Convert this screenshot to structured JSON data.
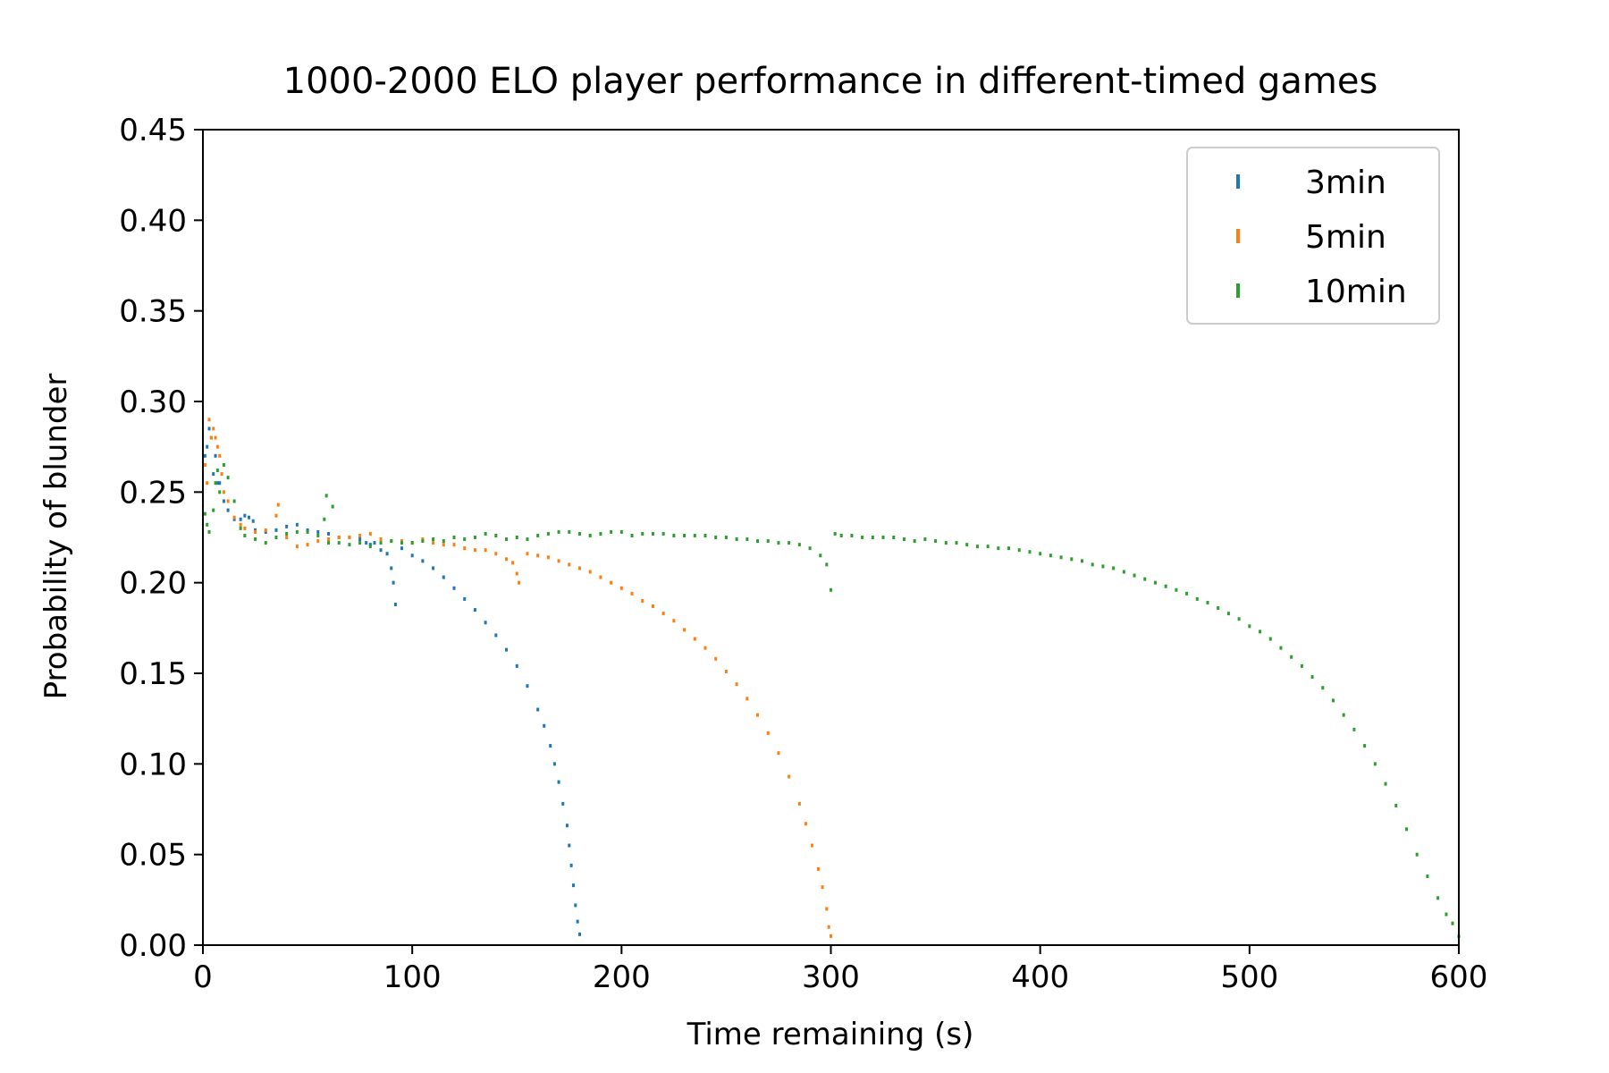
{
  "chart_data": {
    "type": "scatter",
    "title": "1000-2000 ELO player performance in different-timed games",
    "xlabel": "Time remaining (s)",
    "ylabel": "Probability of blunder",
    "xlim": [
      0,
      600
    ],
    "ylim": [
      0,
      0.45
    ],
    "xticks": [
      0,
      100,
      200,
      300,
      400,
      500,
      600
    ],
    "xtick_labels": [
      "0",
      "100",
      "200",
      "300",
      "400",
      "500",
      "600"
    ],
    "yticks": [
      0.0,
      0.05,
      0.1,
      0.15,
      0.2,
      0.25,
      0.3,
      0.35,
      0.4,
      0.45
    ],
    "ytick_labels": [
      "0.00",
      "0.05",
      "0.10",
      "0.15",
      "0.20",
      "0.25",
      "0.30",
      "0.35",
      "0.40",
      "0.45"
    ],
    "grid": false,
    "legend_position": "top-right",
    "series": [
      {
        "name": "3min",
        "color": "#1f77b4",
        "points": [
          [
            1,
            0.27
          ],
          [
            2,
            0.275
          ],
          [
            3,
            0.285
          ],
          [
            4,
            0.28
          ],
          [
            5,
            0.26
          ],
          [
            6,
            0.27
          ],
          [
            7,
            0.255
          ],
          [
            8,
            0.255
          ],
          [
            10,
            0.245
          ],
          [
            12,
            0.24
          ],
          [
            15,
            0.235
          ],
          [
            18,
            0.235
          ],
          [
            20,
            0.237
          ],
          [
            22,
            0.236
          ],
          [
            24,
            0.234
          ],
          [
            25,
            0.229
          ],
          [
            30,
            0.228
          ],
          [
            35,
            0.229
          ],
          [
            40,
            0.231
          ],
          [
            45,
            0.232
          ],
          [
            50,
            0.229
          ],
          [
            55,
            0.228
          ],
          [
            60,
            0.227
          ],
          [
            65,
            0.225
          ],
          [
            70,
            0.225
          ],
          [
            75,
            0.224
          ],
          [
            78,
            0.222
          ],
          [
            80,
            0.221
          ],
          [
            82,
            0.222
          ],
          [
            85,
            0.218
          ],
          [
            88,
            0.216
          ],
          [
            90,
            0.208
          ],
          [
            91,
            0.2
          ],
          [
            92,
            0.188
          ],
          [
            95,
            0.219
          ],
          [
            100,
            0.215
          ],
          [
            105,
            0.212
          ],
          [
            110,
            0.208
          ],
          [
            115,
            0.203
          ],
          [
            120,
            0.197
          ],
          [
            125,
            0.191
          ],
          [
            130,
            0.185
          ],
          [
            135,
            0.178
          ],
          [
            140,
            0.171
          ],
          [
            145,
            0.163
          ],
          [
            150,
            0.154
          ],
          [
            155,
            0.143
          ],
          [
            160,
            0.13
          ],
          [
            163,
            0.121
          ],
          [
            166,
            0.11
          ],
          [
            168,
            0.1
          ],
          [
            170,
            0.09
          ],
          [
            172,
            0.078
          ],
          [
            174,
            0.066
          ],
          [
            175,
            0.055
          ],
          [
            176,
            0.044
          ],
          [
            177,
            0.033
          ],
          [
            178,
            0.022
          ],
          [
            179,
            0.013
          ],
          [
            180,
            0.006
          ]
        ]
      },
      {
        "name": "5min",
        "color": "#ff7f0e",
        "points": [
          [
            1,
            0.265
          ],
          [
            2,
            0.255
          ],
          [
            3,
            0.29
          ],
          [
            4,
            0.28
          ],
          [
            5,
            0.285
          ],
          [
            6,
            0.28
          ],
          [
            7,
            0.275
          ],
          [
            8,
            0.27
          ],
          [
            9,
            0.26
          ],
          [
            10,
            0.25
          ],
          [
            12,
            0.245
          ],
          [
            15,
            0.236
          ],
          [
            18,
            0.232
          ],
          [
            20,
            0.23
          ],
          [
            25,
            0.228
          ],
          [
            30,
            0.229
          ],
          [
            35,
            0.237
          ],
          [
            36,
            0.243
          ],
          [
            40,
            0.225
          ],
          [
            45,
            0.22
          ],
          [
            50,
            0.221
          ],
          [
            55,
            0.223
          ],
          [
            60,
            0.224
          ],
          [
            65,
            0.225
          ],
          [
            70,
            0.225
          ],
          [
            75,
            0.226
          ],
          [
            80,
            0.227
          ],
          [
            85,
            0.224
          ],
          [
            90,
            0.223
          ],
          [
            95,
            0.223
          ],
          [
            100,
            0.222
          ],
          [
            105,
            0.224
          ],
          [
            110,
            0.222
          ],
          [
            115,
            0.221
          ],
          [
            120,
            0.221
          ],
          [
            125,
            0.219
          ],
          [
            130,
            0.218
          ],
          [
            135,
            0.218
          ],
          [
            140,
            0.216
          ],
          [
            145,
            0.213
          ],
          [
            148,
            0.211
          ],
          [
            150,
            0.205
          ],
          [
            151,
            0.2
          ],
          [
            155,
            0.216
          ],
          [
            160,
            0.215
          ],
          [
            165,
            0.214
          ],
          [
            170,
            0.212
          ],
          [
            175,
            0.21
          ],
          [
            180,
            0.208
          ],
          [
            185,
            0.206
          ],
          [
            190,
            0.203
          ],
          [
            195,
            0.2
          ],
          [
            200,
            0.197
          ],
          [
            205,
            0.194
          ],
          [
            210,
            0.19
          ],
          [
            215,
            0.187
          ],
          [
            220,
            0.183
          ],
          [
            225,
            0.179
          ],
          [
            230,
            0.174
          ],
          [
            235,
            0.169
          ],
          [
            240,
            0.164
          ],
          [
            245,
            0.158
          ],
          [
            250,
            0.151
          ],
          [
            255,
            0.144
          ],
          [
            260,
            0.136
          ],
          [
            265,
            0.127
          ],
          [
            270,
            0.117
          ],
          [
            275,
            0.106
          ],
          [
            280,
            0.093
          ],
          [
            285,
            0.078
          ],
          [
            288,
            0.067
          ],
          [
            291,
            0.055
          ],
          [
            294,
            0.042
          ],
          [
            296,
            0.032
          ],
          [
            298,
            0.02
          ],
          [
            299,
            0.01
          ],
          [
            300,
            0.005
          ]
        ]
      },
      {
        "name": "10min",
        "color": "#2ca02c",
        "points": [
          [
            1,
            0.238
          ],
          [
            2,
            0.232
          ],
          [
            3,
            0.228
          ],
          [
            5,
            0.24
          ],
          [
            6,
            0.255
          ],
          [
            7,
            0.262
          ],
          [
            8,
            0.25
          ],
          [
            10,
            0.265
          ],
          [
            12,
            0.258
          ],
          [
            15,
            0.245
          ],
          [
            18,
            0.23
          ],
          [
            20,
            0.226
          ],
          [
            25,
            0.224
          ],
          [
            30,
            0.222
          ],
          [
            35,
            0.225
          ],
          [
            40,
            0.227
          ],
          [
            45,
            0.228
          ],
          [
            50,
            0.228
          ],
          [
            55,
            0.226
          ],
          [
            58,
            0.235
          ],
          [
            59,
            0.248
          ],
          [
            60,
            0.222
          ],
          [
            62,
            0.242
          ],
          [
            65,
            0.222
          ],
          [
            70,
            0.221
          ],
          [
            75,
            0.222
          ],
          [
            80,
            0.22
          ],
          [
            85,
            0.222
          ],
          [
            90,
            0.223
          ],
          [
            95,
            0.222
          ],
          [
            100,
            0.222
          ],
          [
            105,
            0.223
          ],
          [
            110,
            0.224
          ],
          [
            115,
            0.223
          ],
          [
            120,
            0.225
          ],
          [
            125,
            0.224
          ],
          [
            130,
            0.225
          ],
          [
            135,
            0.227
          ],
          [
            140,
            0.226
          ],
          [
            145,
            0.224
          ],
          [
            150,
            0.225
          ],
          [
            155,
            0.224
          ],
          [
            160,
            0.226
          ],
          [
            165,
            0.227
          ],
          [
            170,
            0.228
          ],
          [
            175,
            0.228
          ],
          [
            180,
            0.227
          ],
          [
            185,
            0.226
          ],
          [
            190,
            0.227
          ],
          [
            195,
            0.228
          ],
          [
            200,
            0.228
          ],
          [
            205,
            0.226
          ],
          [
            210,
            0.227
          ],
          [
            215,
            0.227
          ],
          [
            220,
            0.227
          ],
          [
            225,
            0.226
          ],
          [
            230,
            0.226
          ],
          [
            235,
            0.226
          ],
          [
            240,
            0.226
          ],
          [
            245,
            0.225
          ],
          [
            250,
            0.225
          ],
          [
            255,
            0.224
          ],
          [
            260,
            0.224
          ],
          [
            265,
            0.223
          ],
          [
            270,
            0.223
          ],
          [
            275,
            0.222
          ],
          [
            280,
            0.222
          ],
          [
            285,
            0.221
          ],
          [
            290,
            0.219
          ],
          [
            295,
            0.215
          ],
          [
            298,
            0.21
          ],
          [
            300,
            0.196
          ],
          [
            302,
            0.227
          ],
          [
            305,
            0.226
          ],
          [
            310,
            0.226
          ],
          [
            315,
            0.225
          ],
          [
            320,
            0.225
          ],
          [
            325,
            0.225
          ],
          [
            330,
            0.225
          ],
          [
            335,
            0.224
          ],
          [
            340,
            0.223
          ],
          [
            345,
            0.224
          ],
          [
            350,
            0.223
          ],
          [
            355,
            0.222
          ],
          [
            360,
            0.222
          ],
          [
            365,
            0.221
          ],
          [
            370,
            0.22
          ],
          [
            375,
            0.22
          ],
          [
            380,
            0.219
          ],
          [
            385,
            0.219
          ],
          [
            390,
            0.218
          ],
          [
            395,
            0.217
          ],
          [
            400,
            0.216
          ],
          [
            405,
            0.215
          ],
          [
            410,
            0.214
          ],
          [
            415,
            0.213
          ],
          [
            420,
            0.212
          ],
          [
            425,
            0.21
          ],
          [
            430,
            0.209
          ],
          [
            435,
            0.208
          ],
          [
            440,
            0.206
          ],
          [
            445,
            0.204
          ],
          [
            450,
            0.202
          ],
          [
            455,
            0.2
          ],
          [
            460,
            0.198
          ],
          [
            465,
            0.196
          ],
          [
            470,
            0.194
          ],
          [
            475,
            0.191
          ],
          [
            480,
            0.189
          ],
          [
            485,
            0.186
          ],
          [
            490,
            0.183
          ],
          [
            495,
            0.18
          ],
          [
            500,
            0.176
          ],
          [
            505,
            0.173
          ],
          [
            510,
            0.169
          ],
          [
            515,
            0.164
          ],
          [
            520,
            0.159
          ],
          [
            525,
            0.154
          ],
          [
            530,
            0.148
          ],
          [
            535,
            0.142
          ],
          [
            540,
            0.135
          ],
          [
            545,
            0.127
          ],
          [
            550,
            0.119
          ],
          [
            555,
            0.11
          ],
          [
            560,
            0.1
          ],
          [
            565,
            0.089
          ],
          [
            570,
            0.077
          ],
          [
            575,
            0.064
          ],
          [
            580,
            0.05
          ],
          [
            585,
            0.038
          ],
          [
            590,
            0.026
          ],
          [
            594,
            0.017
          ],
          [
            597,
            0.012
          ],
          [
            600,
            0.005
          ]
        ]
      }
    ]
  }
}
